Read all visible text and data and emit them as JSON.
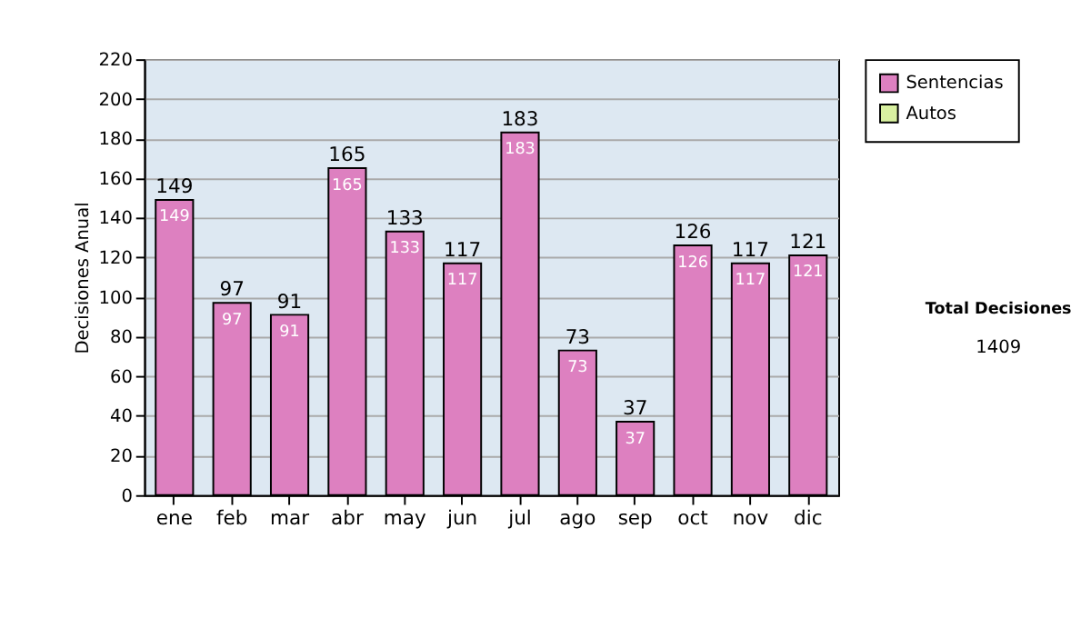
{
  "chart_data": {
    "type": "bar",
    "ylabel": "Decisiones Anual",
    "categories": [
      "ene",
      "feb",
      "mar",
      "abr",
      "may",
      "jun",
      "jul",
      "ago",
      "sep",
      "oct",
      "nov",
      "dic"
    ],
    "series": [
      {
        "name": "Sentencias",
        "color": "#dd80c0",
        "values": [
          149,
          97,
          91,
          165,
          133,
          117,
          183,
          73,
          37,
          126,
          117,
          121
        ],
        "value_labels": [
          "149",
          "97",
          "91",
          "165",
          "133",
          "117",
          "183",
          "73",
          "37",
          "126",
          "117",
          "121"
        ]
      },
      {
        "name": "Autos",
        "color": "#d8f0a0",
        "values": [
          null,
          null,
          null,
          null,
          null,
          null,
          null,
          null,
          null,
          null,
          null,
          null
        ]
      }
    ],
    "totals": [
      "149",
      "97",
      "91",
      "165",
      "133",
      "117",
      "183",
      "73",
      "37",
      "126",
      "117",
      "121"
    ],
    "ylim": [
      0,
      220
    ],
    "yticks": [
      0,
      20,
      40,
      60,
      80,
      100,
      120,
      140,
      160,
      180,
      200,
      220
    ],
    "grid": "y",
    "legend": "right",
    "annotations": [
      "Total Decisiones",
      "1409"
    ]
  }
}
